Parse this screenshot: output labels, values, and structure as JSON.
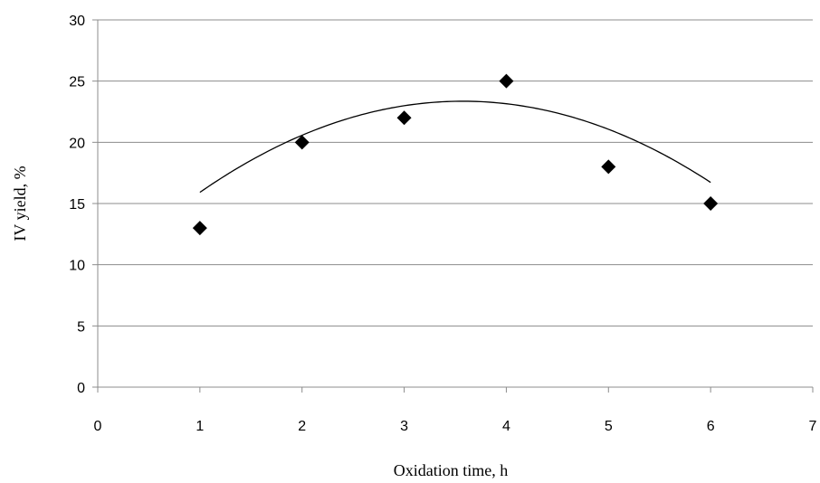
{
  "chart_data": {
    "type": "scatter",
    "title": "",
    "xlabel": "Oxidation time, h",
    "ylabel": "IV yield, %",
    "xlim": [
      0,
      7
    ],
    "ylim": [
      0,
      30
    ],
    "x_ticks": [
      0,
      1,
      2,
      3,
      4,
      5,
      6,
      7
    ],
    "y_ticks": [
      0,
      5,
      10,
      15,
      20,
      25,
      30
    ],
    "grid": "horizontal",
    "legend": "none",
    "marker": "diamond",
    "marker_color": "#000000",
    "series": [
      {
        "x": [
          1,
          2,
          3,
          4,
          5,
          6
        ],
        "y": [
          13,
          20,
          22,
          25,
          18,
          15
        ]
      }
    ],
    "trendline": {
      "type": "polynomial-2",
      "x_range": [
        1,
        6
      ],
      "coefficients": [
        -1.125,
        8.0375,
        9.0
      ]
    }
  }
}
